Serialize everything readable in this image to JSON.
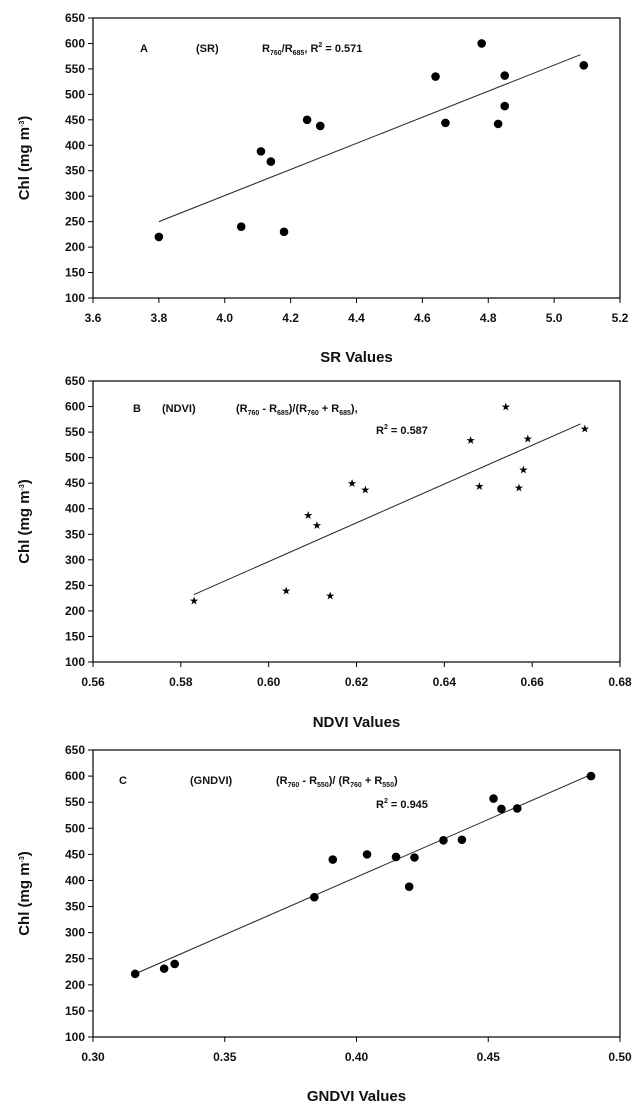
{
  "chart_data": [
    {
      "type": "scatter",
      "panel_letter": "A",
      "index_name": "(SR)",
      "formula_parts": [
        {
          "t": "R",
          "s": ""
        },
        {
          "t": "760",
          "s": "sub"
        },
        {
          "t": "/R",
          "s": ""
        },
        {
          "t": "685",
          "s": "sub"
        },
        {
          "t": ", R",
          "s": ""
        },
        {
          "t": "2",
          "s": "sup"
        },
        {
          "t": " = 0.571",
          "s": ""
        }
      ],
      "r2_parts": [],
      "xlabel": "SR Values",
      "ylabel_parts": [
        {
          "t": "Chl (mg m",
          "s": ""
        },
        {
          "t": "-3",
          "s": "sup"
        },
        {
          "t": ")",
          "s": ""
        }
      ],
      "xlim": [
        3.6,
        5.2
      ],
      "ylim": [
        100,
        650
      ],
      "xticks": [
        3.6,
        3.8,
        4.0,
        4.2,
        4.4,
        4.6,
        4.8,
        5.0,
        5.2
      ],
      "xtick_labels": [
        "3.6",
        "3.8",
        "4.0",
        "4.2",
        "4.4",
        "4.6",
        "4.8",
        "5.0",
        "5.2"
      ],
      "yticks": [
        100,
        150,
        200,
        250,
        300,
        350,
        400,
        450,
        500,
        550,
        600,
        650
      ],
      "ytick_labels": [
        "100",
        "150",
        "200",
        "250",
        "300",
        "350",
        "400",
        "450",
        "500",
        "550",
        "600",
        "650"
      ],
      "marker": "circle",
      "points": [
        {
          "x": 3.8,
          "y": 220
        },
        {
          "x": 4.05,
          "y": 240
        },
        {
          "x": 4.11,
          "y": 388
        },
        {
          "x": 4.14,
          "y": 368
        },
        {
          "x": 4.18,
          "y": 230
        },
        {
          "x": 4.25,
          "y": 450
        },
        {
          "x": 4.29,
          "y": 438
        },
        {
          "x": 4.64,
          "y": 535
        },
        {
          "x": 4.67,
          "y": 444
        },
        {
          "x": 4.78,
          "y": 600
        },
        {
          "x": 4.83,
          "y": 442
        },
        {
          "x": 4.85,
          "y": 477
        },
        {
          "x": 4.85,
          "y": 537
        },
        {
          "x": 5.09,
          "y": 557
        }
      ],
      "fit": {
        "x": [
          3.8,
          5.08
        ],
        "y": [
          250,
          578
        ]
      }
    },
    {
      "type": "scatter",
      "panel_letter": "B",
      "index_name": "(NDVI)",
      "formula_parts": [
        {
          "t": "(R",
          "s": ""
        },
        {
          "t": "760",
          "s": "sub"
        },
        {
          "t": " - R",
          "s": ""
        },
        {
          "t": "685",
          "s": "sub"
        },
        {
          "t": ")/(R",
          "s": ""
        },
        {
          "t": "760",
          "s": "sub"
        },
        {
          "t": " + R",
          "s": ""
        },
        {
          "t": "685",
          "s": "sub"
        },
        {
          "t": "),",
          "s": ""
        }
      ],
      "r2_parts": [
        {
          "t": "R",
          "s": ""
        },
        {
          "t": "2",
          "s": "sup"
        },
        {
          "t": " = 0.587",
          "s": ""
        }
      ],
      "xlabel": "NDVI Values",
      "ylabel_parts": [
        {
          "t": "Chl (mg m",
          "s": ""
        },
        {
          "t": "-3",
          "s": "sup"
        },
        {
          "t": ")",
          "s": ""
        }
      ],
      "xlim": [
        0.56,
        0.68
      ],
      "ylim": [
        100,
        650
      ],
      "xticks": [
        0.56,
        0.58,
        0.6,
        0.62,
        0.64,
        0.66,
        0.68
      ],
      "xtick_labels": [
        "0.56",
        "0.58",
        "0.60",
        "0.62",
        "0.64",
        "0.66",
        "0.68"
      ],
      "yticks": [
        100,
        150,
        200,
        250,
        300,
        350,
        400,
        450,
        500,
        550,
        600,
        650
      ],
      "ytick_labels": [
        "100",
        "150",
        "200",
        "250",
        "300",
        "350",
        "400",
        "450",
        "500",
        "550",
        "600",
        "650"
      ],
      "marker": "star",
      "points": [
        {
          "x": 0.583,
          "y": 220
        },
        {
          "x": 0.604,
          "y": 240
        },
        {
          "x": 0.609,
          "y": 388
        },
        {
          "x": 0.611,
          "y": 368
        },
        {
          "x": 0.614,
          "y": 230
        },
        {
          "x": 0.619,
          "y": 450
        },
        {
          "x": 0.622,
          "y": 438
        },
        {
          "x": 0.646,
          "y": 535
        },
        {
          "x": 0.648,
          "y": 444
        },
        {
          "x": 0.654,
          "y": 600
        },
        {
          "x": 0.657,
          "y": 442
        },
        {
          "x": 0.658,
          "y": 477
        },
        {
          "x": 0.659,
          "y": 537
        },
        {
          "x": 0.672,
          "y": 557
        }
      ],
      "fit": {
        "x": [
          0.583,
          0.671
        ],
        "y": [
          232,
          566
        ]
      }
    },
    {
      "type": "scatter",
      "panel_letter": "C",
      "index_name": "(GNDVI)",
      "formula_parts": [
        {
          "t": "(R",
          "s": ""
        },
        {
          "t": "760",
          "s": "sub"
        },
        {
          "t": " - R",
          "s": ""
        },
        {
          "t": "550",
          "s": "sub"
        },
        {
          "t": ")/ (R",
          "s": ""
        },
        {
          "t": "760",
          "s": "sub"
        },
        {
          "t": " + R",
          "s": ""
        },
        {
          "t": "550",
          "s": "sub"
        },
        {
          "t": ")",
          "s": ""
        }
      ],
      "r2_parts": [
        {
          "t": "R",
          "s": ""
        },
        {
          "t": "2",
          "s": "sup"
        },
        {
          "t": " = 0.945",
          "s": ""
        }
      ],
      "xlabel": "GNDVI Values",
      "ylabel_parts": [
        {
          "t": "Chl (mg m",
          "s": ""
        },
        {
          "t": "-3",
          "s": "sup"
        },
        {
          "t": ")",
          "s": ""
        }
      ],
      "xlim": [
        0.3,
        0.5
      ],
      "ylim": [
        100,
        650
      ],
      "xticks": [
        0.3,
        0.35,
        0.4,
        0.45,
        0.5
      ],
      "xtick_labels": [
        "0.30",
        "0.35",
        "0.40",
        "0.45",
        "0.50"
      ],
      "yticks": [
        100,
        150,
        200,
        250,
        300,
        350,
        400,
        450,
        500,
        550,
        600,
        650
      ],
      "ytick_labels": [
        "100",
        "150",
        "200",
        "250",
        "300",
        "350",
        "400",
        "450",
        "500",
        "550",
        "600",
        "650"
      ],
      "marker": "circle",
      "points": [
        {
          "x": 0.316,
          "y": 221
        },
        {
          "x": 0.327,
          "y": 231
        },
        {
          "x": 0.331,
          "y": 240
        },
        {
          "x": 0.384,
          "y": 368
        },
        {
          "x": 0.391,
          "y": 440
        },
        {
          "x": 0.404,
          "y": 450
        },
        {
          "x": 0.415,
          "y": 445
        },
        {
          "x": 0.42,
          "y": 388
        },
        {
          "x": 0.422,
          "y": 444
        },
        {
          "x": 0.433,
          "y": 477
        },
        {
          "x": 0.44,
          "y": 478
        },
        {
          "x": 0.452,
          "y": 557
        },
        {
          "x": 0.455,
          "y": 537
        },
        {
          "x": 0.461,
          "y": 538
        },
        {
          "x": 0.489,
          "y": 600
        }
      ],
      "fit": {
        "x": [
          0.316,
          0.489
        ],
        "y": [
          221,
          603
        ]
      }
    }
  ]
}
